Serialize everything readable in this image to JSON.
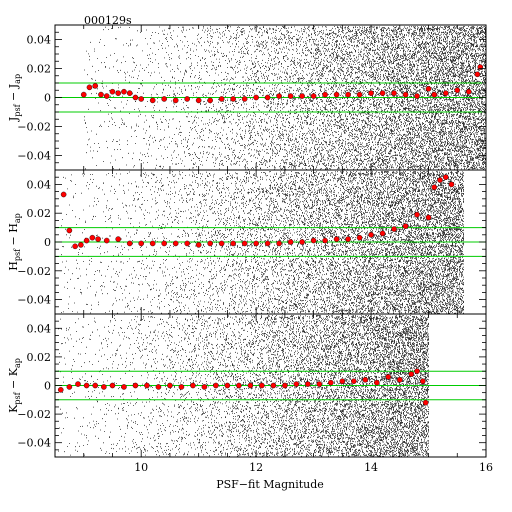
{
  "figure_id": "000129s",
  "chart_data": [
    {
      "type": "scatter",
      "ylabel": {
        "base1": "J",
        "sub1": "psf",
        "base2": "J",
        "sub2": "ap"
      },
      "xlim": [
        8.5,
        16
      ],
      "ylim": [
        -0.05,
        0.05
      ],
      "yticks": [
        "0.04",
        "0.02",
        "0",
        "−0.02",
        "−0.04"
      ],
      "yticks_values": [
        0.04,
        0.02,
        0,
        -0.02,
        -0.04
      ],
      "reference_lines": [
        0.01,
        0,
        -0.01
      ],
      "reference_color": "#00cc00",
      "cloud_start": 9.0,
      "cloud_end": 16.0,
      "medians": {
        "x": [
          9.0,
          9.1,
          9.2,
          9.3,
          9.4,
          9.5,
          9.6,
          9.7,
          9.8,
          9.9,
          10.0,
          10.2,
          10.4,
          10.6,
          10.8,
          11.0,
          11.2,
          11.4,
          11.6,
          11.8,
          12.0,
          12.2,
          12.4,
          12.6,
          12.8,
          13.0,
          13.2,
          13.4,
          13.6,
          13.8,
          14.0,
          14.2,
          14.4,
          14.6,
          14.8,
          15.0,
          15.1,
          15.3,
          15.5,
          15.7,
          15.85,
          15.9
        ],
        "y": [
          0.002,
          0.007,
          0.008,
          0.002,
          0.001,
          0.004,
          0.003,
          0.004,
          0.003,
          0.0,
          -0.001,
          -0.002,
          -0.001,
          -0.002,
          -0.001,
          -0.002,
          -0.002,
          -0.001,
          -0.001,
          -0.001,
          0.0,
          0.0,
          0.001,
          0.001,
          0.001,
          0.001,
          0.002,
          0.002,
          0.002,
          0.002,
          0.003,
          0.003,
          0.003,
          0.002,
          0.001,
          0.006,
          0.002,
          0.003,
          0.005,
          0.004,
          0.016,
          0.021
        ]
      }
    },
    {
      "type": "scatter",
      "ylabel": {
        "base1": "H",
        "sub1": "psf",
        "base2": "H",
        "sub2": "ap"
      },
      "xlim": [
        8.5,
        16
      ],
      "ylim": [
        -0.05,
        0.05
      ],
      "yticks": [
        "0.04",
        "0.02",
        "0",
        "−0.02",
        "−0.04"
      ],
      "yticks_values": [
        0.04,
        0.02,
        0,
        -0.02,
        -0.04
      ],
      "reference_lines": [
        0.01,
        0,
        -0.01
      ],
      "reference_color": "#00cc00",
      "cloud_start": 8.6,
      "cloud_end": 15.6,
      "medians": {
        "x": [
          8.65,
          8.75,
          8.85,
          8.95,
          9.05,
          9.15,
          9.25,
          9.4,
          9.6,
          9.8,
          10.0,
          10.2,
          10.4,
          10.6,
          10.8,
          11.0,
          11.2,
          11.4,
          11.6,
          11.8,
          12.0,
          12.2,
          12.4,
          12.6,
          12.8,
          13.0,
          13.2,
          13.4,
          13.6,
          13.8,
          14.0,
          14.2,
          14.4,
          14.6,
          14.8,
          15.0,
          15.1,
          15.2,
          15.3,
          15.4
        ],
        "y": [
          0.033,
          0.008,
          -0.003,
          -0.002,
          0.001,
          0.003,
          0.002,
          0.001,
          0.002,
          -0.001,
          -0.001,
          -0.001,
          -0.001,
          -0.001,
          -0.001,
          -0.002,
          -0.001,
          -0.001,
          -0.001,
          -0.001,
          -0.001,
          -0.001,
          -0.001,
          0.0,
          0.0,
          0.001,
          0.001,
          0.002,
          0.002,
          0.003,
          0.005,
          0.006,
          0.009,
          0.011,
          0.019,
          0.017,
          0.038,
          0.043,
          0.045,
          0.04
        ]
      }
    },
    {
      "type": "scatter",
      "ylabel": {
        "base1": "K",
        "sub1": "psf",
        "base2": "K",
        "sub2": "ap"
      },
      "xlim": [
        8.5,
        16
      ],
      "ylim": [
        -0.05,
        0.05
      ],
      "xlabel": "PSF−fit Magnitude",
      "xticks": [
        "10",
        "12",
        "14",
        "16"
      ],
      "xticks_values": [
        10,
        12,
        14,
        16
      ],
      "yticks": [
        "0.04",
        "0.02",
        "0",
        "−0.02",
        "−0.04"
      ],
      "yticks_values": [
        0.04,
        0.02,
        0,
        -0.02,
        -0.04
      ],
      "reference_lines": [
        0.01,
        0,
        -0.01
      ],
      "reference_color": "#00cc00",
      "cloud_start": 8.55,
      "cloud_end": 15.0,
      "medians": {
        "x": [
          8.6,
          8.75,
          8.9,
          9.05,
          9.2,
          9.35,
          9.5,
          9.7,
          9.9,
          10.1,
          10.3,
          10.5,
          10.7,
          10.9,
          11.1,
          11.3,
          11.5,
          11.7,
          11.9,
          12.1,
          12.3,
          12.5,
          12.7,
          12.9,
          13.1,
          13.3,
          13.5,
          13.7,
          13.9,
          14.1,
          14.3,
          14.5,
          14.7,
          14.8,
          14.9,
          14.95
        ],
        "y": [
          -0.003,
          -0.001,
          0.001,
          0.0,
          0.0,
          -0.001,
          0.0,
          -0.001,
          0.0,
          0.0,
          -0.001,
          0.0,
          -0.001,
          0.0,
          -0.001,
          0.0,
          0.0,
          0.0,
          0.0,
          0.0,
          0.0,
          0.0,
          0.001,
          0.001,
          0.001,
          0.002,
          0.003,
          0.003,
          0.004,
          0.002,
          0.006,
          0.004,
          0.008,
          0.01,
          0.003,
          -0.012
        ]
      }
    }
  ]
}
